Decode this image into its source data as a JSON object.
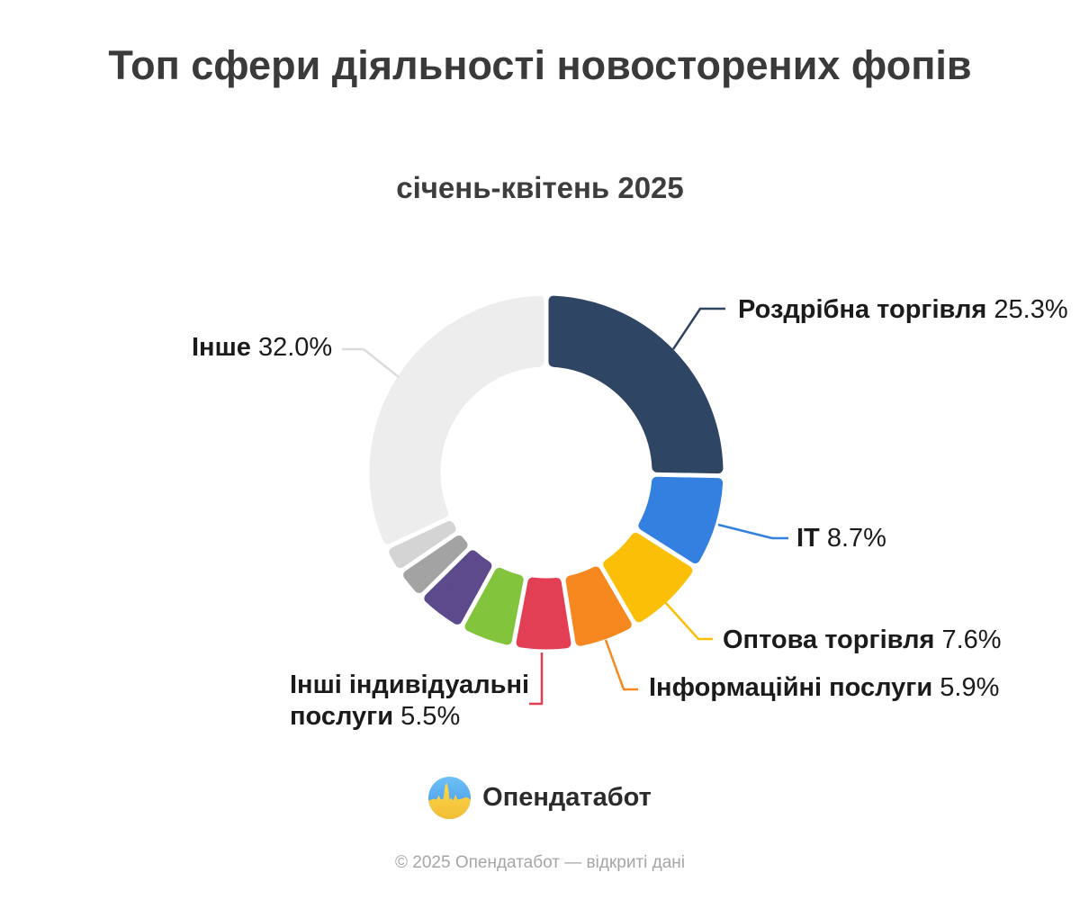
{
  "header": {
    "title": "Топ сфери діяльності новосторених фопів",
    "subtitle": "січень-квітень 2025"
  },
  "chart_data": {
    "type": "pie",
    "subtype": "donut",
    "title": "Топ сфери діяльності новосторених фопів",
    "subtitle": "січень-квітень 2025",
    "unit": "%",
    "direction": "clockwise",
    "start_angle_deg": 0,
    "segments": [
      {
        "label": "Роздрібна торгівля",
        "value": 25.3,
        "value_text": "25.3%",
        "color": "#2F4564",
        "leader_color": "#2F4564"
      },
      {
        "label": "IT",
        "value": 8.7,
        "value_text": "8.7%",
        "color": "#3380E0",
        "leader_color": "#3380E0"
      },
      {
        "label": "Оптова торгівля",
        "value": 7.6,
        "value_text": "7.6%",
        "color": "#FCBF07",
        "leader_color": "#FCBF07"
      },
      {
        "label": "Інформаційні послуги",
        "value": 5.9,
        "value_text": "5.9%",
        "color": "#F6881F",
        "leader_color": "#F6881F"
      },
      {
        "label": "Інші індивідуальні послуги",
        "value": 5.5,
        "value_text": "5.5%",
        "color": "#E23F55",
        "leader_color": "#E23F55"
      },
      {
        "label": null,
        "value": 5.0,
        "color": "#82C43C",
        "estimated": true
      },
      {
        "label": null,
        "value": 4.6,
        "color": "#5D4A8C",
        "estimated": true
      },
      {
        "label": null,
        "value": 2.9,
        "color": "#A3A3A3",
        "estimated": true
      },
      {
        "label": null,
        "value": 2.5,
        "color": "#D4D4D4",
        "estimated": true
      },
      {
        "label": "Інше",
        "value": 32.0,
        "value_text": "32.0%",
        "color": "#EDEDED",
        "leader_color": "#DCDCDC"
      }
    ]
  },
  "branding": {
    "logo_text": "Опендатабот",
    "logo_icon": "opendatabot-pulse-circle",
    "flag_blue": "#53A8F0",
    "flag_yellow": "#F8CB3F"
  },
  "footer": {
    "copyright": "© 2025 Опендатабот — відкриті дані"
  }
}
